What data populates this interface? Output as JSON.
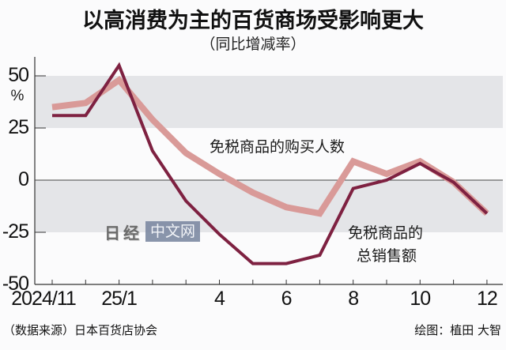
{
  "header": {
    "title": "以高消费为主的百货商场受影响更大",
    "subtitle": "（同比增减率）"
  },
  "axis": {
    "unit": "%",
    "y_ticks": [
      "50",
      "25",
      "0",
      "-25",
      "-50"
    ],
    "x_labels": [
      {
        "label": "2024/11",
        "month_index": 0
      },
      {
        "label": "25/1",
        "month_index": 2
      },
      {
        "label": "4",
        "month_index": 5
      },
      {
        "label": "6",
        "month_index": 7
      },
      {
        "label": "8",
        "month_index": 9
      },
      {
        "label": "10",
        "month_index": 11
      },
      {
        "label": "12",
        "month_index": 13
      }
    ]
  },
  "labels": {
    "series_1_label": "免税商品的购买人数",
    "series_2_label_line1": "免税商品的",
    "series_2_label_line2": "总销售额"
  },
  "watermark": {
    "logo": "日经",
    "text": "中文网"
  },
  "footer": {
    "source": "（数据来源）日本百货店协会",
    "credit": "绘图：植田 大智"
  },
  "colors": {
    "series_1": "#d99a98",
    "series_2": "#7e2141",
    "band": "#e4e5e8",
    "axis": "#333333"
  },
  "chart_data": {
    "type": "line",
    "title": "以高消费为主的百货商场受影响更大",
    "subtitle": "（同比增减率）",
    "xlabel": "",
    "ylabel": "%",
    "ylim": [
      -50,
      55
    ],
    "yticks": [
      -50,
      -25,
      0,
      25,
      50
    ],
    "shaded_bands": [
      [
        25,
        50
      ],
      [
        -25,
        0
      ]
    ],
    "x": [
      "2024/11",
      "2024/12",
      "2025/1",
      "2025/2",
      "2025/3",
      "2025/4",
      "2025/5",
      "2025/6",
      "2025/7",
      "2025/8",
      "2025/9",
      "2025/10",
      "2025/11",
      "2025/12"
    ],
    "series": [
      {
        "name": "免税商品的购买人数",
        "color": "#d99a98",
        "values": [
          35,
          37,
          48,
          29,
          13,
          3,
          -6,
          -13,
          -16,
          9,
          3,
          9,
          -1,
          -16
        ]
      },
      {
        "name": "免税商品的总销售额",
        "color": "#7e2141",
        "values": [
          31,
          31,
          55,
          14,
          -10,
          -26,
          -40,
          -40,
          -36,
          -4,
          0,
          8,
          -1,
          -16
        ]
      }
    ],
    "source": "（数据来源）日本百货店协会",
    "credit": "绘图：植田 大智",
    "legend_position": "inline labels"
  }
}
